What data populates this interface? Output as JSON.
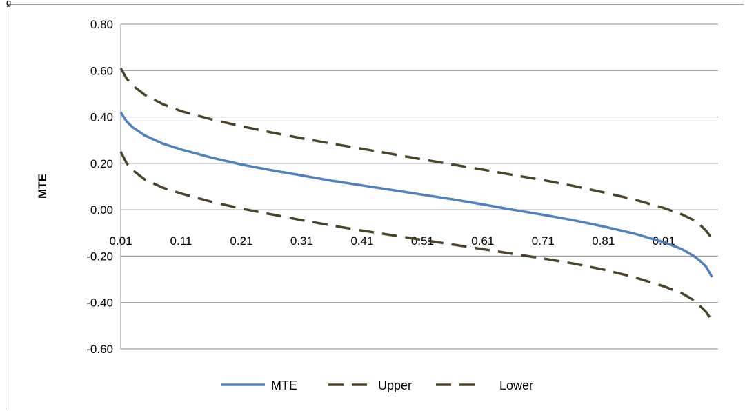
{
  "chart_data": {
    "type": "line",
    "title": "",
    "xlabel": "",
    "ylabel": "MTE",
    "ylim": [
      -0.6,
      0.8
    ],
    "y_ticks": [
      "0.80",
      "0.60",
      "0.40",
      "0.20",
      "0.00",
      "-0.20",
      "-0.40",
      "-0.60"
    ],
    "x_tick_labels": [
      "0.01",
      "0.11",
      "0.21",
      "0.31",
      "0.41",
      "0.51",
      "0.61",
      "0.71",
      "0.81",
      "0.91"
    ],
    "grid": "horizontal",
    "legend_position": "bottom",
    "x": [
      0.01,
      0.02,
      0.03,
      0.05,
      0.08,
      0.11,
      0.16,
      0.21,
      0.26,
      0.31,
      0.36,
      0.41,
      0.46,
      0.51,
      0.56,
      0.61,
      0.66,
      0.71,
      0.76,
      0.81,
      0.86,
      0.91,
      0.94,
      0.96,
      0.97,
      0.98,
      0.99
    ],
    "series": [
      {
        "name": "MTE",
        "color": "#4F81BD",
        "dash": "solid",
        "values": [
          0.42,
          0.38,
          0.355,
          0.32,
          0.285,
          0.26,
          0.225,
          0.195,
          0.17,
          0.148,
          0.125,
          0.105,
          0.085,
          0.065,
          0.045,
          0.023,
          0.0,
          -0.022,
          -0.045,
          -0.072,
          -0.102,
          -0.14,
          -0.17,
          -0.2,
          -0.22,
          -0.245,
          -0.29
        ]
      },
      {
        "name": "Upper",
        "color": "#4A452A",
        "dash": "dashed",
        "values": [
          0.61,
          0.565,
          0.535,
          0.495,
          0.455,
          0.425,
          0.39,
          0.36,
          0.333,
          0.308,
          0.285,
          0.263,
          0.24,
          0.217,
          0.195,
          0.173,
          0.15,
          0.128,
          0.103,
          0.075,
          0.045,
          0.008,
          -0.02,
          -0.045,
          -0.065,
          -0.09,
          -0.125
        ]
      },
      {
        "name": "Lower",
        "color": "#4A452A",
        "dash": "dashed",
        "values": [
          0.25,
          0.2,
          0.17,
          0.13,
          0.095,
          0.07,
          0.035,
          0.005,
          -0.02,
          -0.045,
          -0.068,
          -0.09,
          -0.11,
          -0.13,
          -0.15,
          -0.17,
          -0.19,
          -0.21,
          -0.232,
          -0.258,
          -0.29,
          -0.33,
          -0.36,
          -0.39,
          -0.415,
          -0.44,
          -0.48
        ]
      }
    ]
  }
}
